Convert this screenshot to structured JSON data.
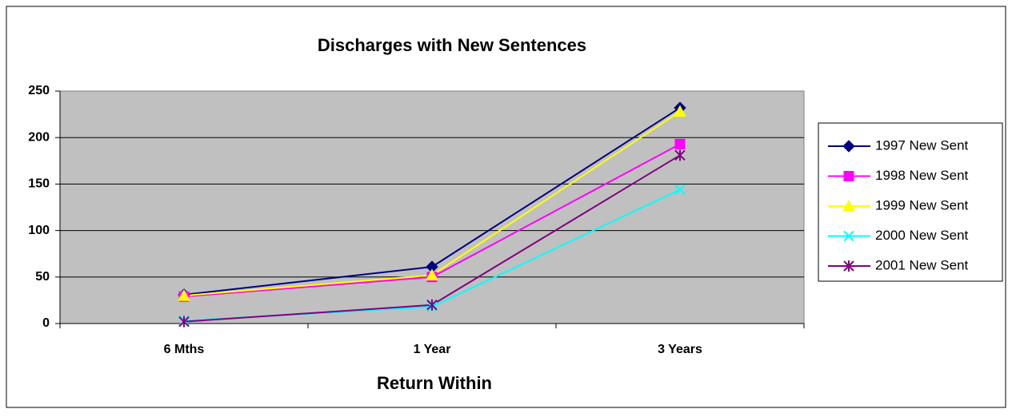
{
  "chart_data": {
    "type": "line",
    "title": "Discharges with New Sentences",
    "x_label": "Return Within",
    "categories": [
      "6 Mths",
      "1 Year",
      "3 Years"
    ],
    "series": [
      {
        "name": "1997 New Sent",
        "color": "#000080",
        "marker": "diamond",
        "values": [
          31,
          61,
          232
        ]
      },
      {
        "name": "1998 New Sent",
        "color": "#ff00ff",
        "marker": "square",
        "values": [
          29,
          50,
          193
        ]
      },
      {
        "name": "1999 New Sent",
        "color": "#ffff00",
        "marker": "triangle",
        "values": [
          30,
          52,
          228
        ]
      },
      {
        "name": "2000 New Sent",
        "color": "#00ffff",
        "marker": "x",
        "values": [
          3,
          18,
          144
        ]
      },
      {
        "name": "2001 New Sent",
        "color": "#800080",
        "marker": "asterisk",
        "values": [
          2,
          20,
          181
        ]
      }
    ],
    "ylim": [
      0,
      250
    ],
    "yticks": [
      0,
      50,
      100,
      150,
      200,
      250
    ],
    "grid": true,
    "legend": "right"
  }
}
